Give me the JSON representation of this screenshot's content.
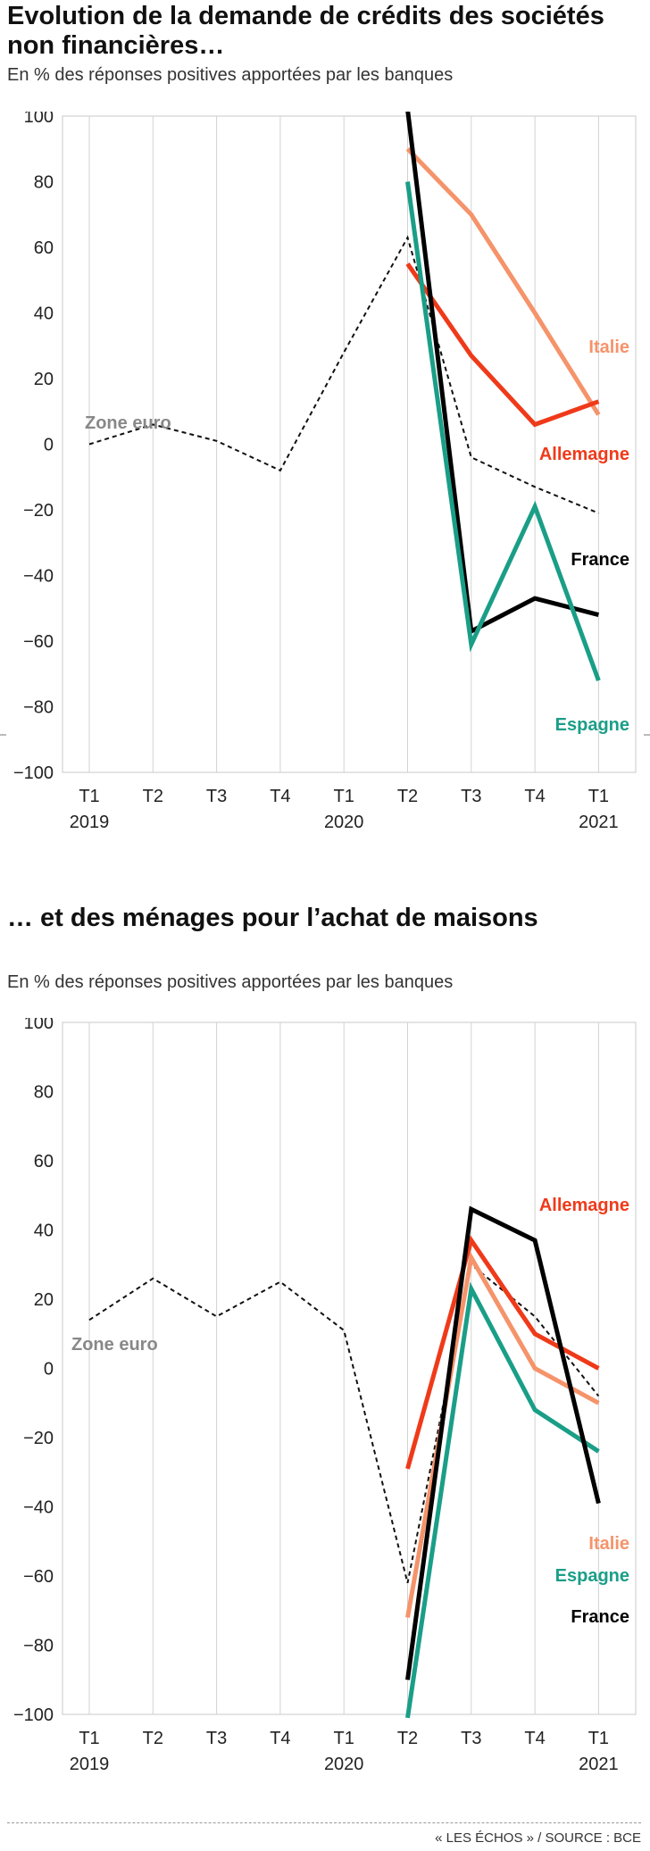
{
  "charts": [
    {
      "title": "Evolution de la demande de crédits des sociétés non financières…",
      "subtitle": "En % des réponses positives apportées par les banques"
    },
    {
      "title": "… et des ménages pour l’achat de maisons",
      "subtitle": "En % des réponses positives apportées par les banques"
    }
  ],
  "source": "« LES ÉCHOS » / SOURCE : BCE",
  "colors": {
    "zone_euro": "#111111",
    "italie": "#f5936a",
    "allemagne": "#ef3a1a",
    "france": "#000000",
    "espagne": "#1a9e87",
    "zone_euro_label": "#888888"
  },
  "chart_data": [
    {
      "type": "line",
      "categories": [
        "T1 2019",
        "T2",
        "T3",
        "T4",
        "T1 2020",
        "T2",
        "T3",
        "T4",
        "T1 2021"
      ],
      "xtick_labels": [
        [
          "T1",
          "2019"
        ],
        [
          "T2",
          ""
        ],
        [
          "T3",
          ""
        ],
        [
          "T4",
          ""
        ],
        [
          "T1",
          "2020"
        ],
        [
          "T2",
          ""
        ],
        [
          "T3",
          ""
        ],
        [
          "T4",
          ""
        ],
        [
          "T1",
          "2021"
        ]
      ],
      "ylim": [
        -100,
        100
      ],
      "yticks": [
        100,
        80,
        60,
        40,
        20,
        0,
        -20,
        -40,
        -60,
        -80,
        -100
      ],
      "grid": "vertical",
      "series": [
        {
          "name": "Zone euro",
          "key": "zone_euro",
          "style": "dashed",
          "values": [
            0,
            6,
            1,
            -8,
            28,
            63,
            -4,
            -13,
            -21
          ]
        },
        {
          "name": "Italie",
          "key": "italie",
          "style": "solid",
          "values": [
            null,
            null,
            null,
            null,
            null,
            90,
            70,
            40,
            9
          ]
        },
        {
          "name": "Allemagne",
          "key": "allemagne",
          "style": "solid",
          "values": [
            null,
            null,
            null,
            null,
            null,
            55,
            27,
            6,
            13
          ]
        },
        {
          "name": "France",
          "key": "france",
          "style": "solid",
          "values": [
            null,
            null,
            null,
            null,
            null,
            102,
            -57,
            -47,
            -52
          ]
        },
        {
          "name": "Espagne",
          "key": "espagne",
          "style": "solid",
          "values": [
            null,
            null,
            null,
            null,
            null,
            80,
            -61,
            -19,
            -72
          ]
        }
      ]
    },
    {
      "type": "line",
      "categories": [
        "T1 2019",
        "T2",
        "T3",
        "T4",
        "T1 2020",
        "T2",
        "T3",
        "T4",
        "T1 2021"
      ],
      "xtick_labels": [
        [
          "T1",
          "2019"
        ],
        [
          "T2",
          ""
        ],
        [
          "T3",
          ""
        ],
        [
          "T4",
          ""
        ],
        [
          "T1",
          "2020"
        ],
        [
          "T2",
          ""
        ],
        [
          "T3",
          ""
        ],
        [
          "T4",
          ""
        ],
        [
          "T1",
          "2021"
        ]
      ],
      "ylim": [
        -100,
        100
      ],
      "yticks": [
        100,
        80,
        60,
        40,
        20,
        0,
        -20,
        -40,
        -60,
        -80,
        -100
      ],
      "grid": "vertical",
      "series": [
        {
          "name": "Zone euro",
          "key": "zone_euro",
          "style": "dashed",
          "values": [
            14,
            26,
            15,
            25,
            11,
            -62,
            30,
            15,
            -8
          ]
        },
        {
          "name": "Allemagne",
          "key": "allemagne",
          "style": "solid",
          "values": [
            null,
            null,
            null,
            null,
            null,
            -29,
            37,
            10,
            0
          ]
        },
        {
          "name": "Italie",
          "key": "italie",
          "style": "solid",
          "values": [
            null,
            null,
            null,
            null,
            null,
            -72,
            32,
            0,
            -10
          ]
        },
        {
          "name": "Espagne",
          "key": "espagne",
          "style": "solid",
          "values": [
            null,
            null,
            null,
            null,
            null,
            -101,
            23,
            -12,
            -24
          ]
        },
        {
          "name": "France",
          "key": "france",
          "style": "solid",
          "values": [
            null,
            null,
            null,
            null,
            null,
            -90,
            46,
            37,
            -39
          ]
        }
      ]
    }
  ]
}
